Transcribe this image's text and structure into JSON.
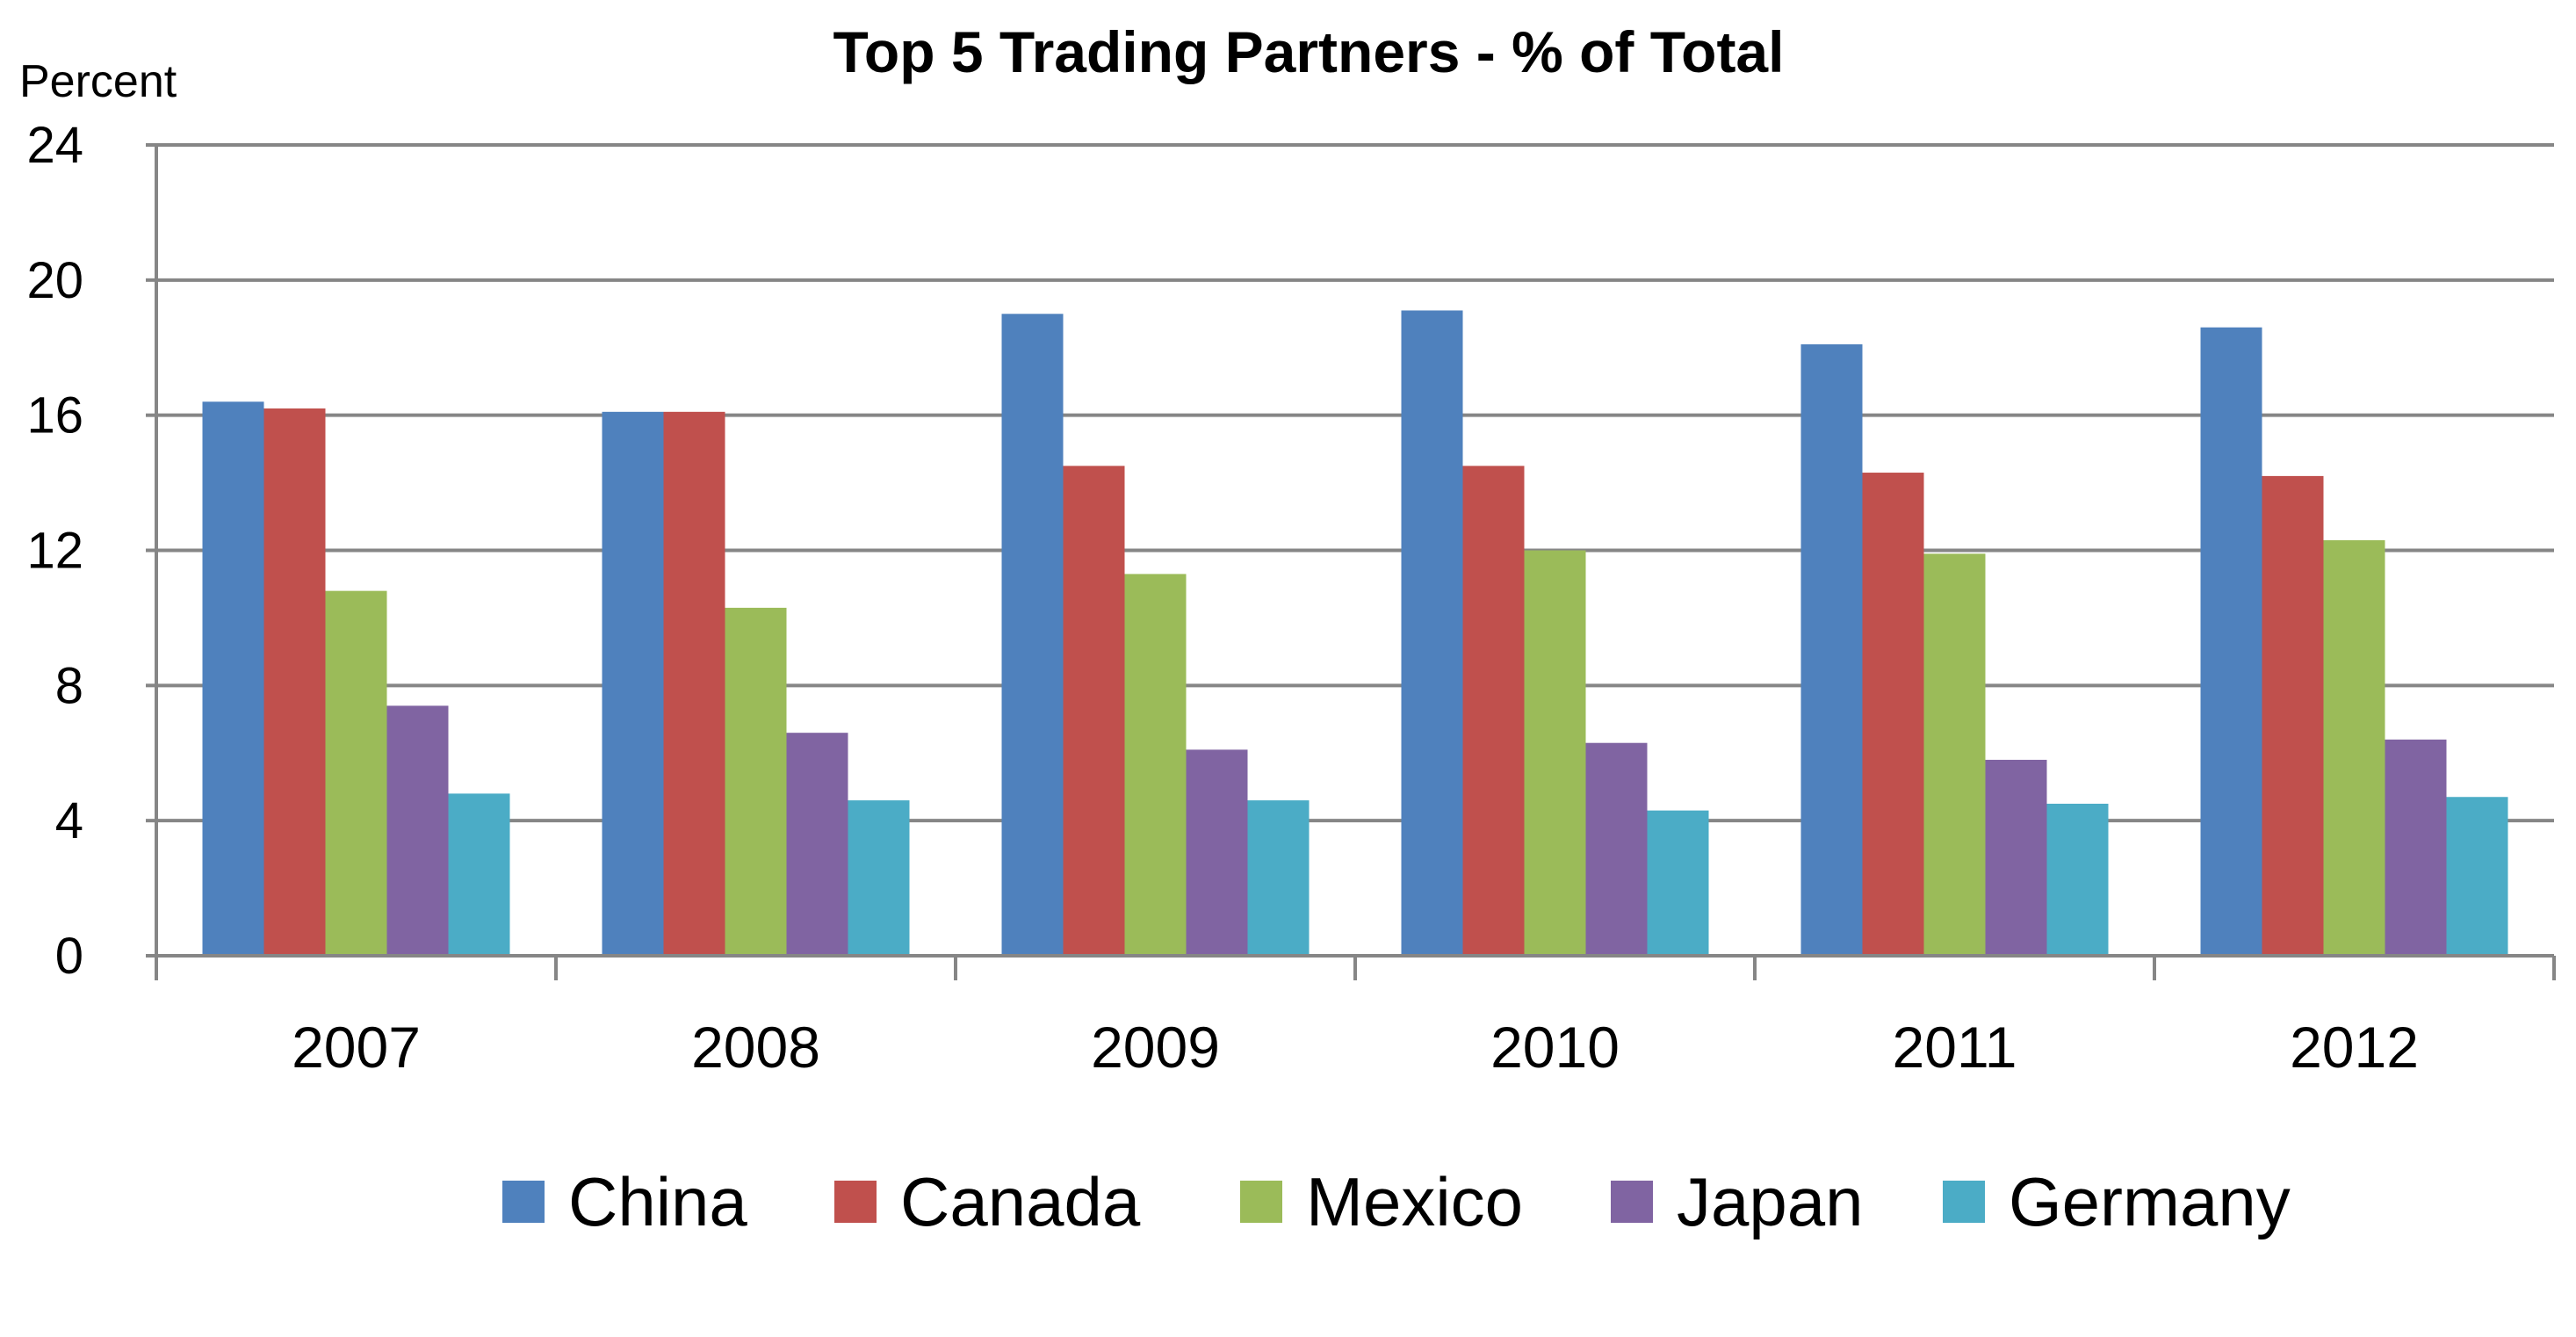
{
  "chart_data": {
    "type": "bar",
    "title": "Top 5 Trading Partners - % of Total",
    "ylabel": "Percent",
    "xlabel": "",
    "ylim": [
      0,
      24
    ],
    "yticks": [
      "0",
      "4",
      "8",
      "12",
      "16",
      "20",
      "24"
    ],
    "categories": [
      "2007",
      "2008",
      "2009",
      "2010",
      "2011",
      "2012"
    ],
    "grid": true,
    "legend_position": "bottom",
    "series": [
      {
        "name": "China",
        "color": "#4F81BD",
        "values": [
          16.4,
          16.1,
          19.0,
          19.1,
          18.1,
          18.6
        ]
      },
      {
        "name": "Canada",
        "color": "#C0504D",
        "values": [
          16.2,
          16.1,
          14.5,
          14.5,
          14.3,
          14.2
        ]
      },
      {
        "name": "Mexico",
        "color": "#9BBB59",
        "values": [
          10.8,
          10.3,
          11.3,
          12.0,
          11.9,
          12.3
        ]
      },
      {
        "name": "Japan",
        "color": "#8064A2",
        "values": [
          7.4,
          6.6,
          6.1,
          6.3,
          5.8,
          6.4
        ]
      },
      {
        "name": "Germany",
        "color": "#4BACC6",
        "values": [
          4.8,
          4.6,
          4.6,
          4.3,
          4.5,
          4.7
        ]
      }
    ]
  }
}
